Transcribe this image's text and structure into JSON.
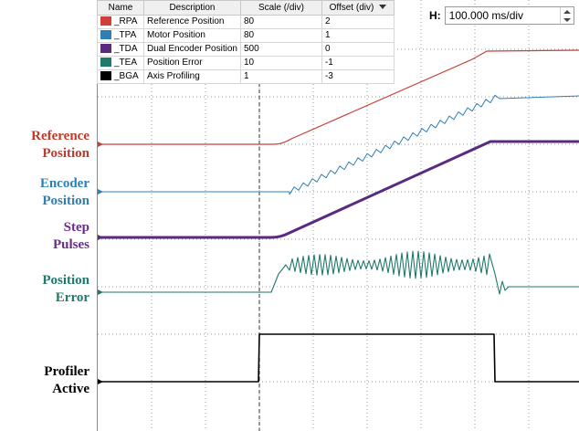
{
  "side_labels": [
    {
      "line1": "Reference",
      "line2": "Position",
      "color": "#c0392b"
    },
    {
      "line1": "Encoder",
      "line2": "Position",
      "color": "#2f7fb5"
    },
    {
      "line1": "Step",
      "line2": "Pulses",
      "color": "#6b2d8c"
    },
    {
      "line1": "Position",
      "line2": "Error",
      "color": "#1e7a6a"
    },
    {
      "line1": "Profiler",
      "line2": "Active",
      "color": "#000000"
    }
  ],
  "legend": {
    "columns": [
      "Name",
      "Description",
      "Scale (/div)",
      "Offset (div)"
    ],
    "rows": [
      {
        "name": "_RPA",
        "description": "Reference Position",
        "scale": "80",
        "offset": "2",
        "color": "#d0403a"
      },
      {
        "name": "_TPA",
        "description": "Motor Position",
        "scale": "80",
        "offset": "1",
        "color": "#2f7fb5"
      },
      {
        "name": "_TDA",
        "description": "Dual Encoder Position",
        "scale": "500",
        "offset": "0",
        "color": "#5a2a80"
      },
      {
        "name": "_TEA",
        "description": "Position Error",
        "scale": "10",
        "offset": "-1",
        "color": "#1e7a6a"
      },
      {
        "name": "_BGA",
        "description": "Axis Profiling",
        "scale": "1",
        "offset": "-3",
        "color": "#000000"
      }
    ]
  },
  "horizontal_scale": {
    "label": "H:",
    "value": "100.000 ms/div"
  },
  "trace_colors": {
    "reference": "#c8403a",
    "encoder": "#2f7fb5",
    "step": "#5a2a80",
    "error": "#1e7a6a",
    "profiler": "#000000"
  }
}
